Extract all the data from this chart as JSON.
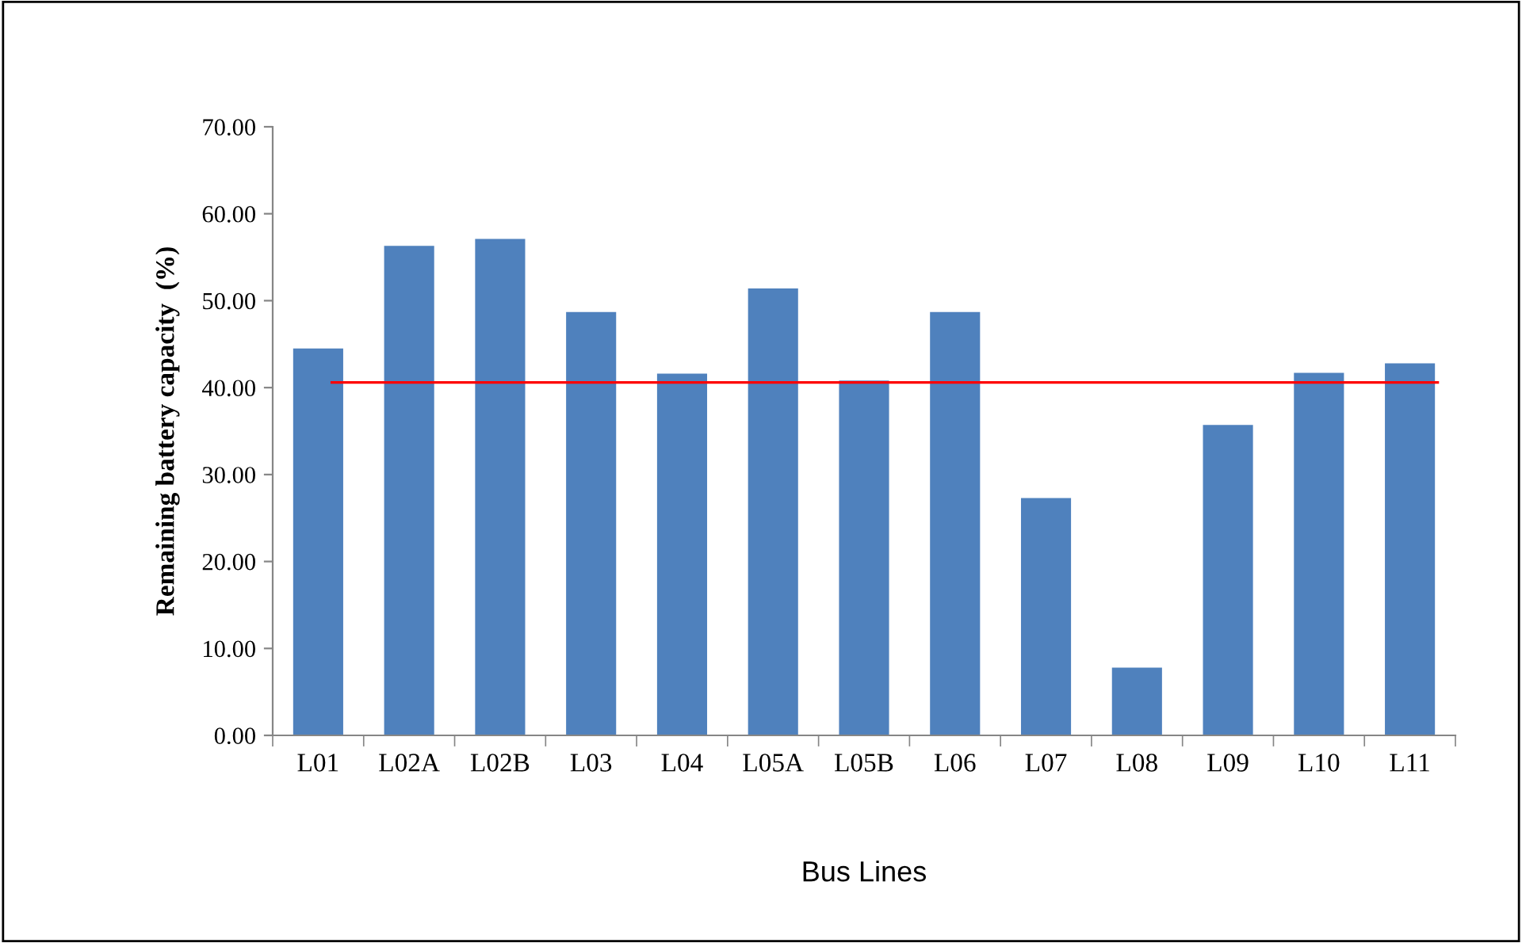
{
  "chart_data": {
    "type": "bar",
    "xlabel": "Bus Lines",
    "ylabel": "Remaining battery capacity  (%)",
    "categories": [
      "L01",
      "L02A",
      "L02B",
      "L03",
      "L04",
      "L05A",
      "L05B",
      "L06",
      "L07",
      "L08",
      "L09",
      "L10",
      "L11"
    ],
    "values": [
      44.5,
      56.3,
      57.1,
      48.7,
      41.6,
      51.4,
      40.8,
      48.7,
      27.3,
      7.8,
      35.7,
      41.7,
      42.8
    ],
    "color": "#4f81bd",
    "ylim": [
      0,
      70
    ],
    "yticks": [
      {
        "value": 0,
        "label": "0.00"
      },
      {
        "value": 10,
        "label": "10.00"
      },
      {
        "value": 20,
        "label": "20.00"
      },
      {
        "value": 30,
        "label": "30.00"
      },
      {
        "value": 40,
        "label": "40.00"
      },
      {
        "value": 50,
        "label": "50.00"
      },
      {
        "value": 60,
        "label": "60.00"
      },
      {
        "value": 70,
        "label": "70.00"
      }
    ],
    "ref_lines": [
      {
        "axis": "y",
        "value": 40.6,
        "color": "#ff0000"
      }
    ],
    "grid": false,
    "legend": false
  }
}
